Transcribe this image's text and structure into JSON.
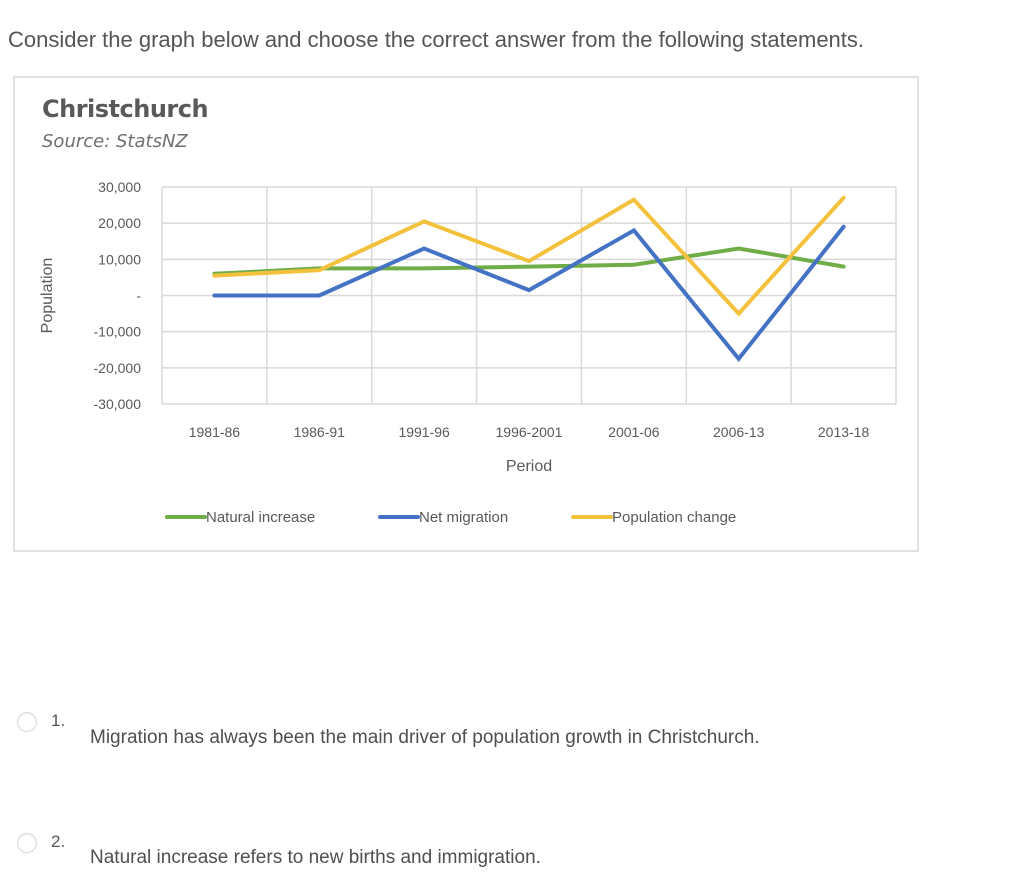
{
  "question": {
    "prompt": "Consider the graph below and choose the correct answer from the following statements."
  },
  "chart_data": {
    "type": "line",
    "title": "Christchurch",
    "subtitle": "Source: StatsNZ",
    "xlabel": "Period",
    "ylabel": "Population",
    "categories": [
      "1981-86",
      "1986-91",
      "1991-96",
      "1996-2001",
      "2001-06",
      "2006-13",
      "2013-18"
    ],
    "ylim": [
      -30000,
      30000
    ],
    "yticks": [
      30000,
      20000,
      10000,
      0,
      -10000,
      -20000,
      -30000
    ],
    "ytick_labels": [
      "30,000",
      "20,000",
      "10,000",
      "-",
      "-10,000",
      "-20,000",
      "-30,000"
    ],
    "grid": true,
    "legend_position": "bottom",
    "series": [
      {
        "name": "Natural increase",
        "color": "#70ad47",
        "values": [
          6000,
          7500,
          7500,
          8000,
          8500,
          13000,
          8000
        ]
      },
      {
        "name": "Net migration",
        "color": "#4472c4",
        "values": [
          0,
          0,
          13000,
          1500,
          18000,
          -17500,
          19000
        ]
      },
      {
        "name": "Population change",
        "color": "#f4c13d",
        "values": [
          5500,
          7000,
          20500,
          9500,
          26500,
          -5000,
          27000
        ]
      }
    ]
  },
  "options": [
    {
      "number": "1.",
      "text": "Migration has always been the main driver of population growth in Christchurch."
    },
    {
      "number": "2.",
      "text": "Natural increase refers to new births and immigration."
    }
  ]
}
